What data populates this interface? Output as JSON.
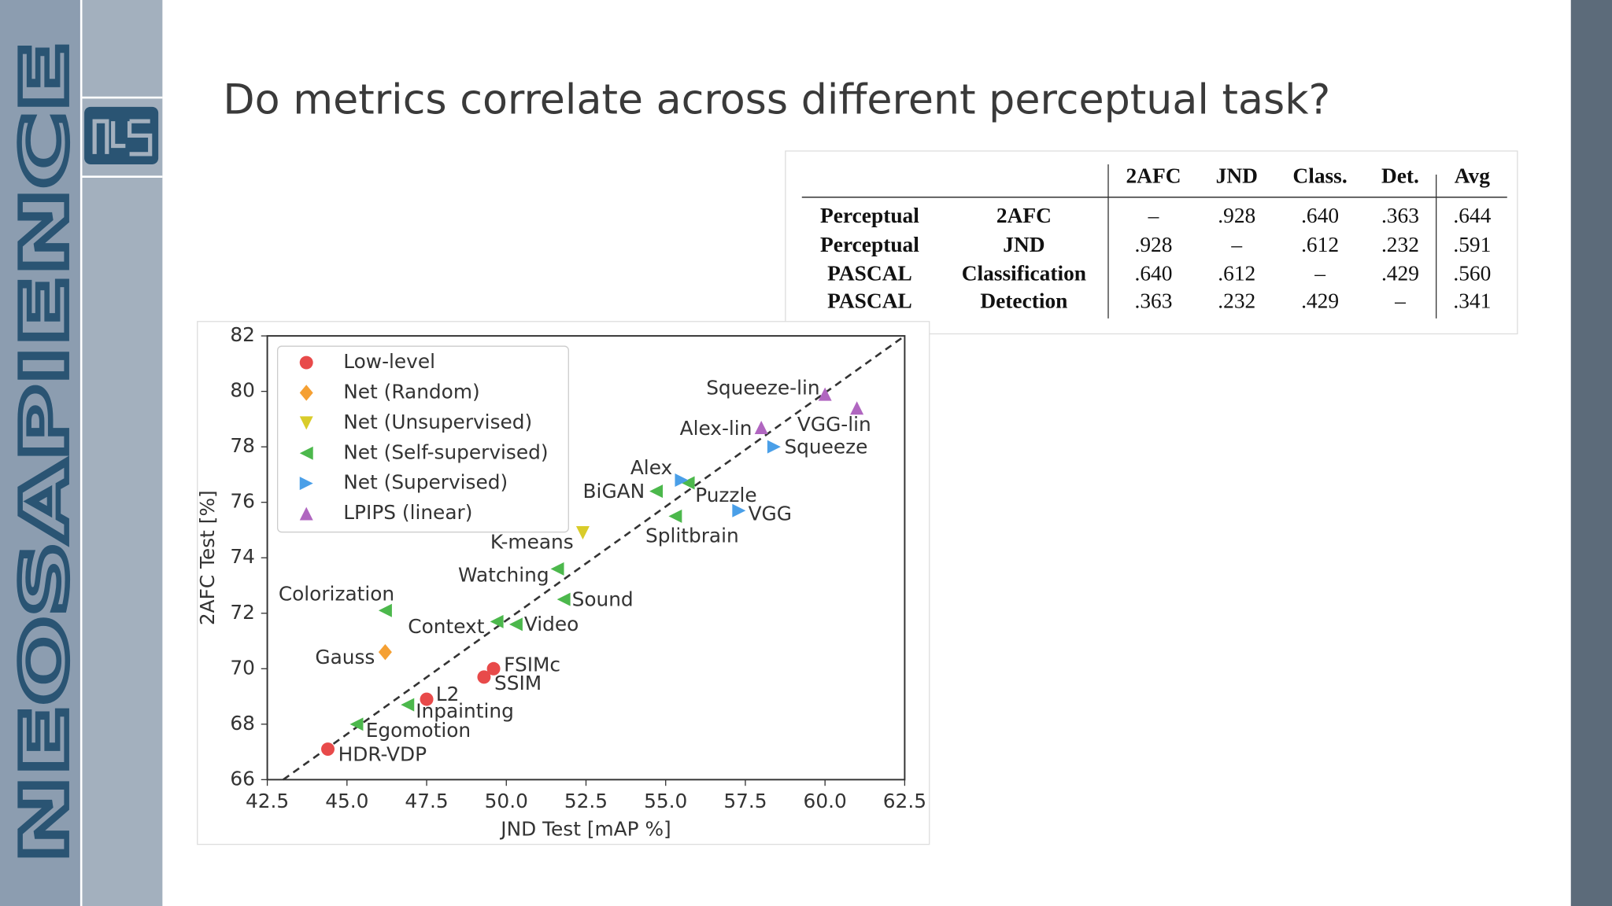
{
  "brand": "NEOSAPIENCE",
  "slide_title": "Do metrics correlate across different perceptual task?",
  "table": {
    "columns": [
      "2AFC",
      "JND",
      "Class.",
      "Det.",
      "Avg"
    ],
    "rows": [
      [
        "Perceptual",
        "2AFC",
        "–",
        ".928",
        ".640",
        ".363",
        ".644"
      ],
      [
        "Perceptual",
        "JND",
        ".928",
        "–",
        ".612",
        ".232",
        ".591"
      ],
      [
        "PASCAL",
        "Classification",
        ".640",
        ".612",
        "–",
        ".429",
        ".560"
      ],
      [
        "PASCAL",
        "Detection",
        ".363",
        ".232",
        ".429",
        "–",
        ".341"
      ]
    ]
  },
  "chart_data": {
    "type": "scatter",
    "xlabel": "JND Test [mAP %]",
    "ylabel": "2AFC Test [%]",
    "xlim": [
      42.5,
      62.5
    ],
    "ylim": [
      66,
      82
    ],
    "xticks": [
      42.5,
      {
        "value": 45,
        "label": "45.0"
      },
      47.5,
      {
        "value": 50,
        "label": "50.0"
      },
      52.5,
      {
        "value": 55,
        "label": "55.0"
      },
      57.5,
      {
        "value": 60,
        "label": "60.0"
      },
      62.5
    ],
    "yticks": [
      66,
      68,
      70,
      72,
      74,
      76,
      78,
      80,
      82
    ],
    "legend": "upper left",
    "reference_line": {
      "x": [
        43,
        62.5
      ],
      "y": [
        66,
        82
      ]
    },
    "series": [
      {
        "name": "Low-level",
        "color": "#e84a4a",
        "marker": "circle",
        "x": [
          44.4,
          47.5,
          49.3,
          49.6
        ],
        "values": [
          67.1,
          68.9,
          69.7,
          70.0
        ],
        "labels": [
          "HDR-VDP",
          "L2",
          "SSIM",
          "FSIMc"
        ]
      },
      {
        "name": "Net (Random)",
        "color": "#f5a033",
        "marker": "diamond",
        "x": [
          46.2
        ],
        "values": [
          70.6
        ],
        "labels": [
          "Gauss"
        ]
      },
      {
        "name": "Net (Unsupervised)",
        "color": "#d9cc2a",
        "marker": "triangle-down",
        "x": [
          52.4
        ],
        "values": [
          74.9
        ],
        "labels": [
          "K-means"
        ]
      },
      {
        "name": "Net (Self-supervised)",
        "color": "#4cb84c",
        "marker": "triangle-left",
        "x": [
          46.2,
          49.7,
          50.3,
          51.8,
          51.6,
          55.3,
          54.7,
          55.7,
          46.9,
          45.3
        ],
        "values": [
          72.1,
          71.7,
          71.6,
          72.5,
          73.6,
          75.5,
          76.4,
          76.7,
          68.7,
          68.0
        ],
        "labels": [
          "Colorization",
          "Context",
          "Video",
          "Sound",
          "Watching",
          "Splitbrain",
          "BiGAN",
          "Puzzle",
          "Inpainting",
          "Egomotion"
        ]
      },
      {
        "name": "Net (Supervised)",
        "color": "#4a9fe8",
        "marker": "triangle-right",
        "x": [
          55.5,
          57.3,
          58.4
        ],
        "values": [
          76.8,
          75.7,
          78.0
        ],
        "labels": [
          "Alex",
          "VGG",
          "Squeeze"
        ]
      },
      {
        "name": "LPIPS (linear)",
        "color": "#b066c0",
        "marker": "triangle-up",
        "x": [
          58.0,
          61.0,
          60.0
        ],
        "values": [
          78.7,
          79.4,
          79.9
        ],
        "labels": [
          "Alex-lin",
          "VGG-lin",
          "Squeeze-lin"
        ]
      }
    ]
  }
}
